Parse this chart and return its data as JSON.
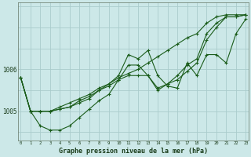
{
  "title": "Graphe pression niveau de la mer (hPa)",
  "background_color": "#cce8e8",
  "grid_color": "#aacccc",
  "line_color": "#1a5c1a",
  "marker_color": "#1a5c1a",
  "x_ticks": [
    0,
    1,
    2,
    3,
    4,
    5,
    6,
    7,
    8,
    9,
    10,
    11,
    12,
    13,
    14,
    15,
    16,
    17,
    18,
    19,
    20,
    21,
    22,
    23
  ],
  "y_ticks": [
    1005,
    1006
  ],
  "ylim": [
    1004.3,
    1007.6
  ],
  "xlim": [
    -0.3,
    23.3
  ],
  "series": [
    [
      1005.8,
      1005.0,
      1005.0,
      1005.0,
      1005.1,
      1005.2,
      1005.3,
      1005.4,
      1005.55,
      1005.65,
      1005.8,
      1005.9,
      1006.0,
      1006.15,
      1006.3,
      1006.45,
      1006.6,
      1006.75,
      1006.85,
      1007.1,
      1007.25,
      1007.3,
      1007.3,
      1007.3
    ],
    [
      1005.8,
      1005.0,
      1005.0,
      1005.0,
      1005.05,
      1005.1,
      1005.25,
      1005.35,
      1005.5,
      1005.65,
      1005.85,
      1006.35,
      1006.25,
      1006.45,
      1005.85,
      1005.6,
      1005.55,
      1006.15,
      1005.85,
      1006.35,
      1006.35,
      1006.15,
      1006.85,
      1007.2
    ],
    [
      1005.8,
      1005.0,
      1005.0,
      1005.0,
      1005.05,
      1005.1,
      1005.2,
      1005.3,
      1005.5,
      1005.6,
      1005.75,
      1006.1,
      1006.1,
      1005.85,
      1005.5,
      1005.65,
      1005.85,
      1006.1,
      1006.25,
      1006.85,
      1007.1,
      1007.25,
      1007.25,
      1007.3
    ],
    [
      1005.8,
      1005.0,
      1004.65,
      1004.55,
      1004.55,
      1004.65,
      1004.85,
      1005.05,
      1005.25,
      1005.4,
      1005.75,
      1005.85,
      1005.85,
      1005.85,
      1005.55,
      1005.65,
      1005.75,
      1005.95,
      1006.15,
      1006.7,
      1007.0,
      1007.25,
      1007.25,
      1007.3
    ]
  ]
}
